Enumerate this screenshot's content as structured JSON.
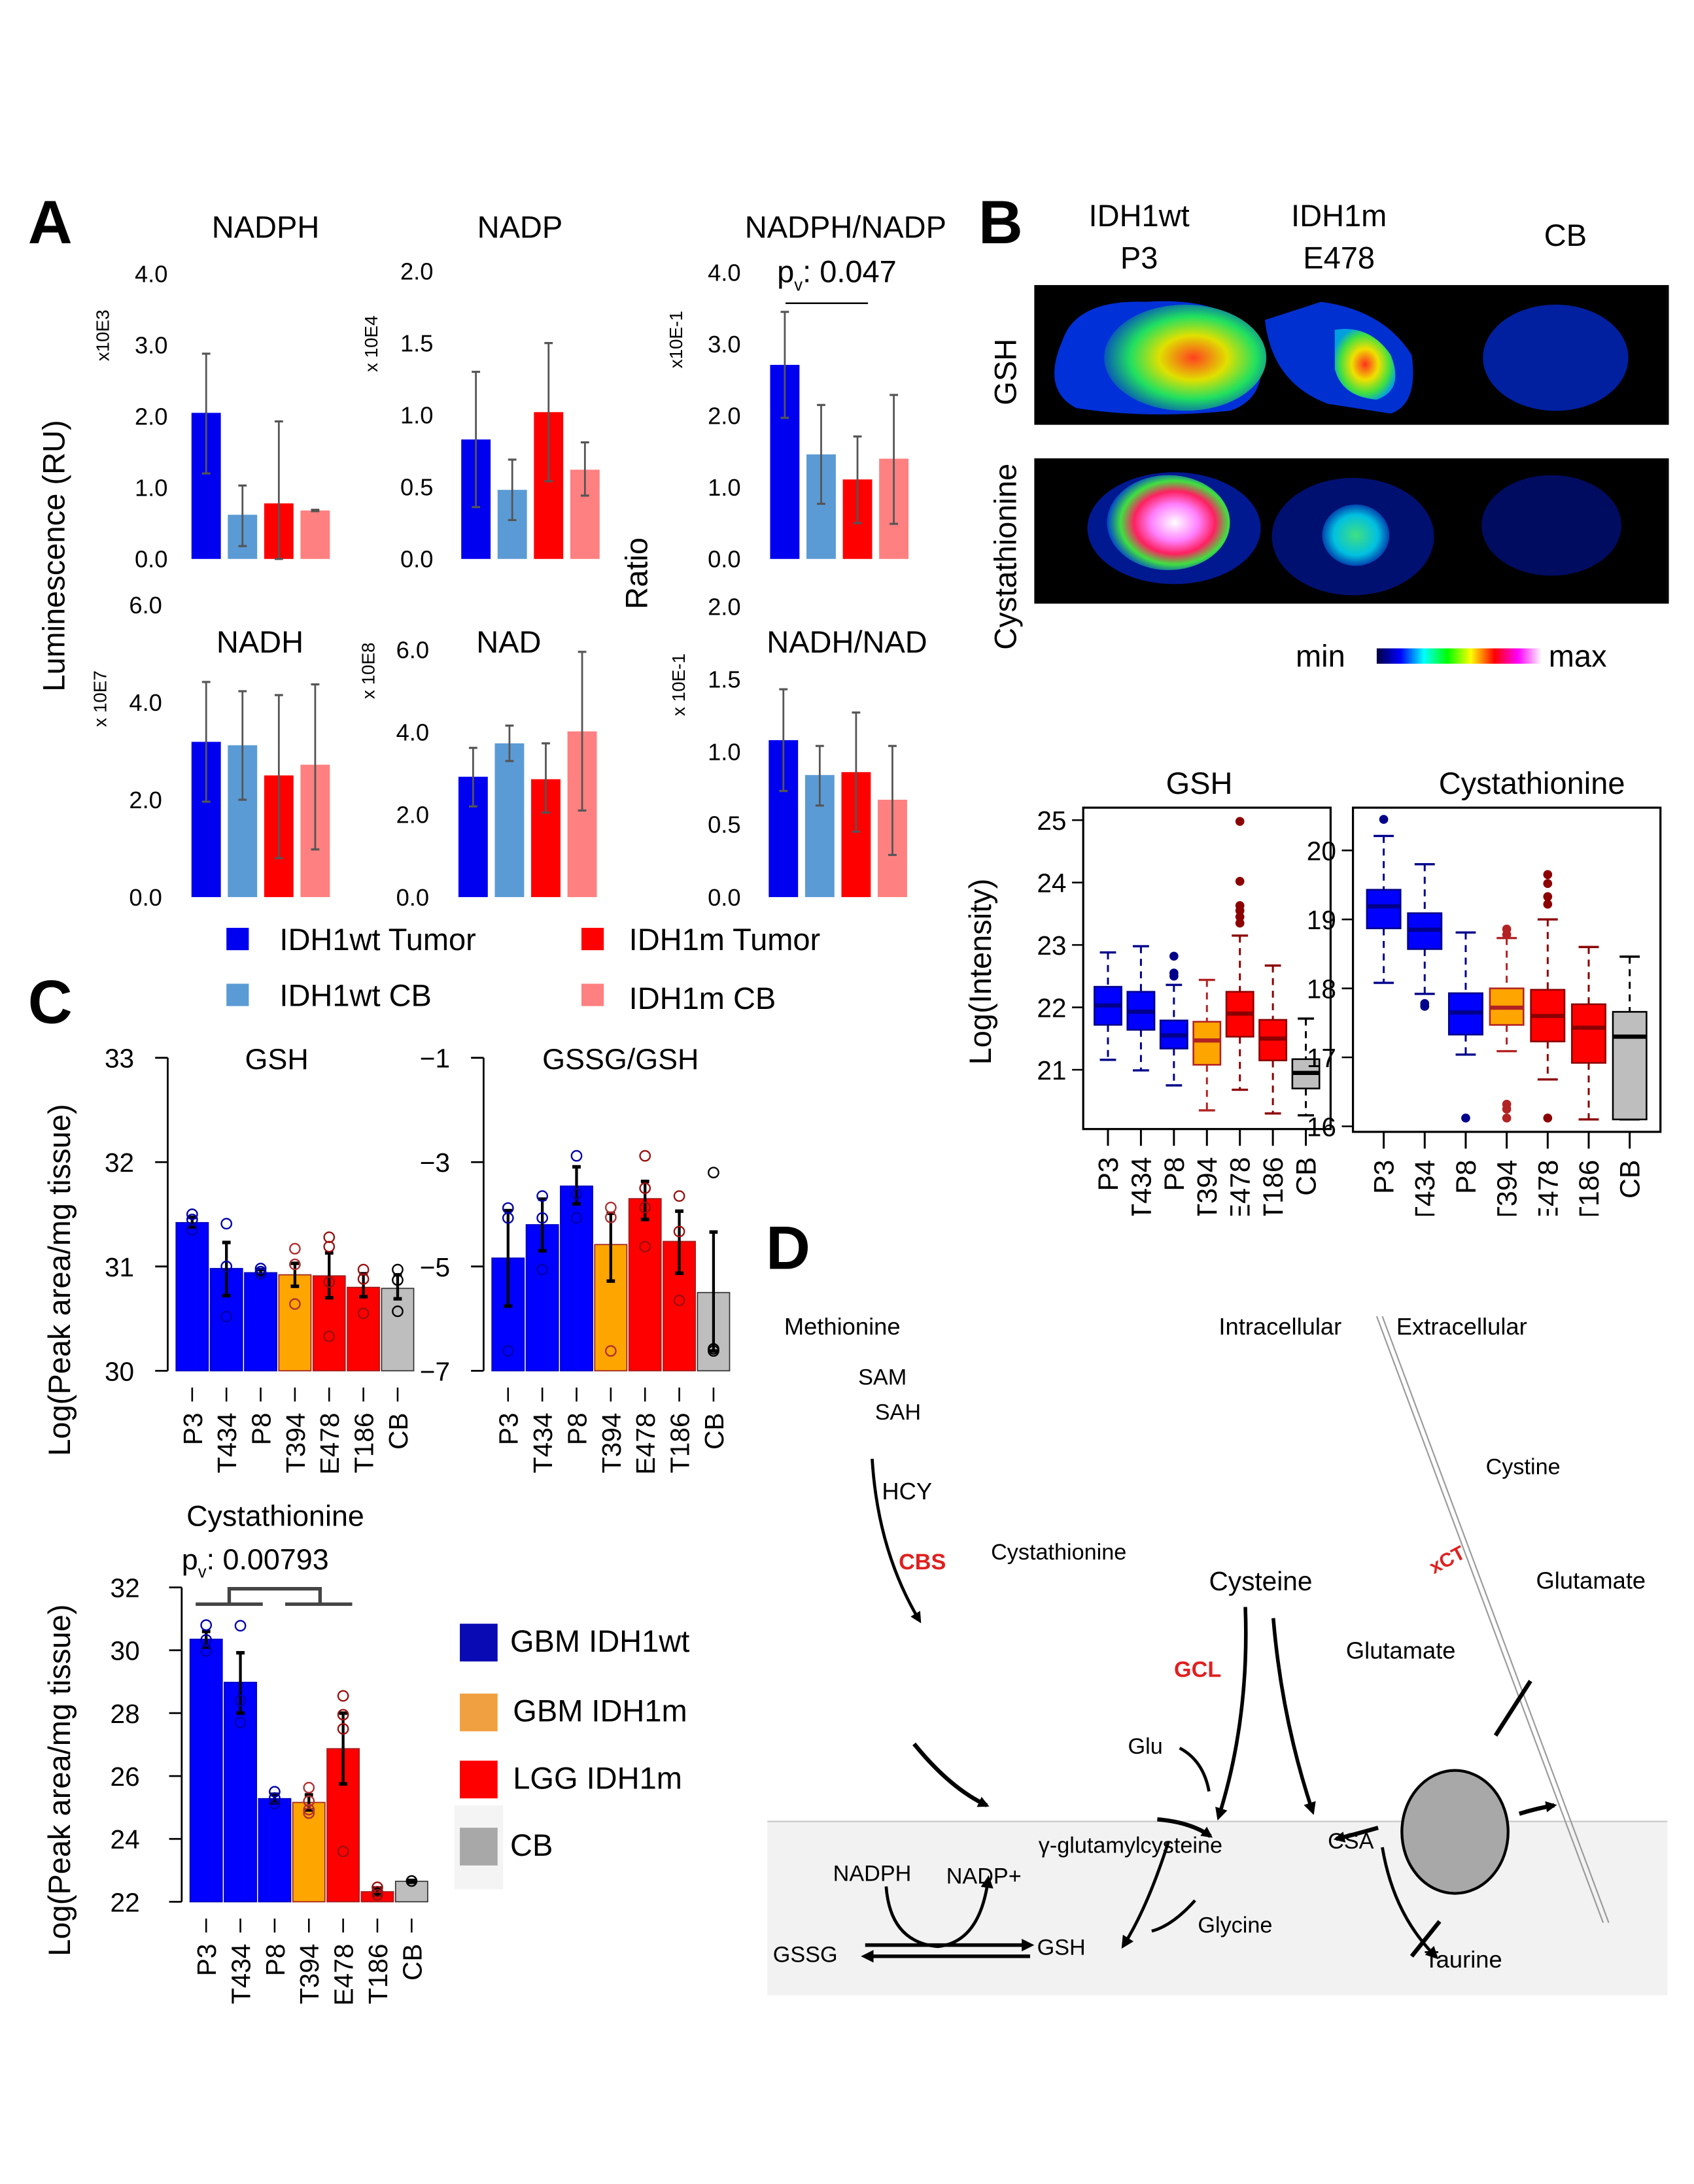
{
  "figure": {
    "panel_labels": [
      "A",
      "B",
      "C",
      "D"
    ]
  },
  "colors": {
    "idh1wt_tumor": "#0000f0",
    "idh1wt_cb": "#5b9bd5",
    "idh1m_tumor": "#ff0000",
    "idh1m_cb": "#ff8080",
    "gbm_idh1wt": "#0000e0",
    "gbm_idh1m": "#ffa500",
    "lgg_idh1m": "#ff0000",
    "cb": "#bebebe",
    "errorbar_gray": "#555555",
    "enzyme_red": "#e02020",
    "cytosol_bg": "#f2f2f2",
    "transporter_fill": "#a8a8a8"
  },
  "panelA": {
    "ylabel_left": "Luminescence (RU)",
    "ylabel_right": "Ratio",
    "legend": [
      {
        "label": "IDH1wt Tumor",
        "color_key": "idh1wt_tumor"
      },
      {
        "label": "IDH1m Tumor",
        "color_key": "idh1m_tumor"
      },
      {
        "label": "IDH1wt CB",
        "color_key": "idh1wt_cb"
      },
      {
        "label": "IDH1m CB",
        "color_key": "idh1m_cb"
      }
    ]
  },
  "panelB": {
    "columns": [
      {
        "line1": "IDH1wt",
        "line2": "P3"
      },
      {
        "line1": "IDH1m",
        "line2": "E478"
      },
      {
        "line1": "CB",
        "line2": ""
      }
    ],
    "rows": [
      "GSH",
      "Cystathionine"
    ],
    "colorbar": {
      "min_label": "min",
      "max_label": "max"
    },
    "boxplot_ylabel": "Log(Intensity)"
  },
  "panelC": {
    "ylabel": "Log(Peak area/mg tissue)",
    "legend": [
      {
        "label": "GBM IDH1wt",
        "color": "#0a0ab4"
      },
      {
        "label": "GBM IDH1m",
        "color": "#f0a040"
      },
      {
        "label": "LGG IDH1m",
        "color": "#ff0000"
      },
      {
        "label": "CB",
        "color": "#a8a8a8"
      }
    ]
  },
  "panelD": {
    "labels": {
      "methionine": "Methionine",
      "sam": "SAM",
      "sah": "SAH",
      "hcy": "HCY",
      "cbs": "CBS",
      "cystathionine": "Cystathionine",
      "cysteine": "Cysteine",
      "intracellular": "Intracellular",
      "extracellular": "Extracellular",
      "cystine": "Cystine",
      "xct": "xCT",
      "glutamate_out": "Glutamate",
      "glutamate_in": "Glutamate",
      "gcl": "GCL",
      "glu": "Glu",
      "gamma_glutamylcysteine": "γ-glutamylcysteine",
      "csa": "CSA",
      "nadph": "NADPH",
      "nadp_plus": "NADP+",
      "glycine": "Glycine",
      "gssg": "GSSG",
      "gsh": "GSH",
      "taurine": "Taurine"
    }
  },
  "chart_data": [
    {
      "id": "A-NADPH",
      "type": "bar",
      "title": "NADPH",
      "scale_label": "x10E3",
      "categories": [
        "IDH1wt Tumor",
        "IDH1wt CB",
        "IDH1m Tumor",
        "IDH1m CB"
      ],
      "values": [
        2.05,
        0.62,
        0.78,
        0.68
      ],
      "err_low": [
        1.2,
        0.18,
        0.0,
        0.67
      ],
      "err_high": [
        2.88,
        1.03,
        1.93,
        0.69
      ],
      "yticks": [
        "0.0",
        "1.0",
        "2.0",
        "3.0",
        "4.0"
      ],
      "ylim": [
        0,
        4
      ]
    },
    {
      "id": "A-NADP",
      "type": "bar",
      "title": "NADP",
      "scale_label": "x 10E4",
      "categories": [
        "IDH1wt Tumor",
        "IDH1wt CB",
        "IDH1m Tumor",
        "IDH1m CB"
      ],
      "values": [
        0.83,
        0.48,
        1.02,
        0.62
      ],
      "err_low": [
        0.36,
        0.27,
        0.54,
        0.44
      ],
      "err_high": [
        1.3,
        0.69,
        1.5,
        0.81
      ],
      "yticks": [
        "0.0",
        "0.5",
        "1.0",
        "1.5",
        "2.0"
      ],
      "ylim": [
        0,
        2
      ]
    },
    {
      "id": "A-NADPH/NADP",
      "type": "bar",
      "title": "NADPH/NADP",
      "scale_label": "x10E-1",
      "annotation": "pv: 0.047",
      "categories": [
        "IDH1wt Tumor",
        "IDH1wt CB",
        "IDH1m Tumor",
        "IDH1m CB"
      ],
      "values": [
        2.71,
        1.46,
        1.11,
        1.4
      ],
      "err_low": [
        1.97,
        0.77,
        0.5,
        0.49
      ],
      "err_high": [
        3.45,
        2.15,
        1.71,
        2.29
      ],
      "yticks": [
        "0.0",
        "1.0",
        "2.0",
        "3.0",
        "4.0"
      ],
      "ylim": [
        0,
        4
      ]
    },
    {
      "id": "A-NADH",
      "type": "bar",
      "title": "NADH",
      "scale_label": "x 10E7",
      "categories": [
        "IDH1wt Tumor",
        "IDH1wt CB",
        "IDH1m Tumor",
        "IDH1m CB"
      ],
      "values": [
        3.19,
        3.12,
        2.5,
        2.72
      ],
      "err_low": [
        1.96,
        2.0,
        0.8,
        0.98
      ],
      "err_high": [
        4.42,
        4.23,
        4.15,
        4.37
      ],
      "yticks": [
        "0.0",
        "2.0",
        "4.0",
        "6.0"
      ],
      "ylim": [
        0,
        6
      ]
    },
    {
      "id": "A-NAD",
      "type": "bar",
      "title": "NAD",
      "scale_label": "x 10E8",
      "categories": [
        "IDH1wt Tumor",
        "IDH1wt CB",
        "IDH1m Tumor",
        "IDH1m CB"
      ],
      "values": [
        2.92,
        3.73,
        2.86,
        4.02
      ],
      "err_low": [
        2.2,
        3.3,
        2.05,
        2.1
      ],
      "err_high": [
        3.62,
        4.16,
        3.73,
        5.95
      ],
      "yticks": [
        "0.0",
        "2.0",
        "4.0",
        "6.0"
      ],
      "ylim": [
        0,
        6
      ]
    },
    {
      "id": "A-NADH/NAD",
      "type": "bar",
      "title": "NADH/NAD",
      "scale_label": "x 10E-1",
      "categories": [
        "IDH1wt Tumor",
        "IDH1wt CB",
        "IDH1m Tumor",
        "IDH1m CB"
      ],
      "values": [
        1.08,
        0.84,
        0.86,
        0.67
      ],
      "err_low": [
        0.73,
        0.63,
        0.45,
        0.29
      ],
      "err_high": [
        1.43,
        1.04,
        1.27,
        1.04
      ],
      "yticks": [
        "0.0",
        "0.5",
        "1.0",
        "1.5",
        "2.0"
      ],
      "ylim": [
        0,
        2
      ]
    },
    {
      "id": "B-GSH",
      "type": "box",
      "title": "GSH",
      "ylabel": "Log(Intensity)",
      "categories": [
        "P3",
        "T434",
        "P8",
        "T394",
        "E478",
        "T186",
        "CB"
      ],
      "group": [
        "wt",
        "wt",
        "wt",
        "gbm_m",
        "lgg_m",
        "lgg_m",
        "cb"
      ],
      "q1": [
        21.72,
        21.64,
        21.34,
        21.08,
        21.53,
        21.15,
        20.7
      ],
      "median": [
        22.03,
        21.93,
        21.55,
        21.47,
        21.9,
        21.5,
        20.95
      ],
      "q3": [
        22.33,
        22.25,
        21.79,
        21.77,
        22.25,
        21.8,
        21.17
      ],
      "whisker_low": [
        21.16,
        20.99,
        20.75,
        20.35,
        20.68,
        20.3,
        20.27
      ],
      "whisker_high": [
        22.88,
        22.98,
        22.36,
        22.44,
        23.15,
        22.67,
        21.82
      ],
      "outliers": [
        [],
        [],
        [
          22.5,
          22.55,
          22.82
        ],
        [],
        [
          23.35,
          23.45,
          23.55,
          23.63,
          24.02,
          24.98
        ],
        [],
        []
      ],
      "yticks": [
        "21",
        "22",
        "23",
        "24",
        "25"
      ],
      "ylim": [
        20.05,
        25.2
      ]
    },
    {
      "id": "B-Cystathionine",
      "type": "box",
      "title": "Cystathionine",
      "categories": [
        "P3",
        "T434",
        "P8",
        "T394",
        "E478",
        "T186",
        "CB"
      ],
      "group": [
        "wt",
        "wt",
        "wt",
        "gbm_m",
        "lgg_m",
        "lgg_m",
        "cb"
      ],
      "q1": [
        18.87,
        18.57,
        17.33,
        17.47,
        17.23,
        16.92,
        16.1
      ],
      "median": [
        19.19,
        18.85,
        17.65,
        17.72,
        17.6,
        17.43,
        17.3
      ],
      "q3": [
        19.43,
        19.09,
        17.93,
        18.0,
        17.98,
        17.77,
        17.66
      ],
      "whisker_low": [
        18.08,
        17.92,
        17.04,
        17.09,
        16.68,
        16.1,
        16.1
      ],
      "whisker_high": [
        20.21,
        19.8,
        18.81,
        18.73,
        19.0,
        18.6,
        18.46
      ],
      "outliers": [
        [
          20.45
        ],
        [
          17.78,
          17.74
        ],
        [
          16.12
        ],
        [
          18.78,
          18.86,
          16.12,
          16.25,
          16.32
        ],
        [
          19.22,
          19.33,
          19.52,
          19.65,
          16.12
        ],
        [],
        []
      ],
      "yticks": [
        "16",
        "17",
        "18",
        "19",
        "20"
      ],
      "ylim": [
        15.92,
        20.62
      ]
    },
    {
      "id": "C-GSH",
      "type": "bar",
      "title": "GSH",
      "ylabel": "Log(Peak area/mg tissue)",
      "categories": [
        "P3",
        "T434",
        "P8",
        "T394",
        "E478",
        "T186",
        "CB"
      ],
      "group": [
        "wt",
        "wt",
        "wt",
        "gbm_m",
        "lgg_m",
        "lgg_m",
        "cb"
      ],
      "values": [
        31.42,
        30.98,
        30.94,
        30.92,
        30.91,
        30.8,
        30.79
      ],
      "err_low": [
        31.38,
        30.72,
        30.92,
        30.81,
        30.7,
        30.71,
        30.69
      ],
      "err_high": [
        31.47,
        31.23,
        30.97,
        31.03,
        31.13,
        30.93,
        30.92
      ],
      "points": [
        [
          31.5,
          31.45,
          31.35
        ],
        [
          31.41,
          31.0,
          30.52
        ],
        [
          30.98,
          30.95,
          30.93
        ],
        [
          31.17,
          31.02,
          30.64
        ],
        [
          31.28,
          31.19,
          30.85,
          30.33
        ],
        [
          30.97,
          30.88,
          30.55
        ],
        [
          30.97,
          30.87,
          30.57
        ]
      ],
      "yticks": [
        "30",
        "31",
        "32",
        "33"
      ],
      "ylim": [
        30,
        33
      ]
    },
    {
      "id": "C-GSSG/GSH",
      "type": "bar",
      "title": "GSSG/GSH",
      "categories": [
        "P3",
        "T434",
        "P8",
        "T394",
        "E478",
        "T186",
        "CB"
      ],
      "group": [
        "wt",
        "wt",
        "wt",
        "gbm_m",
        "lgg_m",
        "lgg_m",
        "cb"
      ],
      "values": [
        -4.84,
        -4.2,
        -3.46,
        -4.58,
        -3.7,
        -4.52,
        -5.5
      ],
      "err_low": [
        -5.76,
        -4.7,
        -3.8,
        -5.28,
        -4.1,
        -5.13,
        -6.62
      ],
      "err_high": [
        -3.93,
        -3.71,
        -3.09,
        -3.98,
        -3.37,
        -3.94,
        -4.34
      ],
      "points": [
        [
          -3.88,
          -4.07,
          -6.62
        ],
        [
          -3.65,
          -4.07,
          -5.06
        ],
        [
          -2.88,
          -3.61,
          -4.07
        ],
        [
          -3.87,
          -4.06,
          -6.62
        ],
        [
          -2.88,
          -3.5,
          -3.87,
          -4.62
        ],
        [
          -3.65,
          -4.33,
          -5.65
        ],
        [
          -3.2,
          -6.58,
          -6.62
        ]
      ],
      "yticks": [
        "-7",
        "-5",
        "-3",
        "-1"
      ],
      "ylim": [
        -7,
        -1
      ]
    },
    {
      "id": "C-Cystathionine",
      "type": "bar",
      "title": "Cystathionine",
      "annotation": "pv: 0.00793",
      "categories": [
        "P3",
        "T434",
        "P8",
        "T394",
        "E478",
        "T186",
        "CB"
      ],
      "group": [
        "wt",
        "wt",
        "wt",
        "gbm_m",
        "lgg_m",
        "lgg_m",
        "cb"
      ],
      "values": [
        30.35,
        28.98,
        25.28,
        25.16,
        26.87,
        22.32,
        22.65
      ],
      "err_low": [
        30.1,
        28.0,
        25.15,
        24.92,
        25.75,
        22.22,
        22.62
      ],
      "err_high": [
        30.6,
        29.92,
        25.42,
        25.4,
        28.0,
        22.44,
        22.68
      ],
      "points": [
        [
          30.8,
          30.33,
          29.98
        ],
        [
          30.78,
          28.4,
          27.7
        ],
        [
          25.5,
          25.3,
          25.12
        ],
        [
          25.63,
          25.2,
          24.93,
          24.82
        ],
        [
          28.55,
          27.95,
          27.5,
          23.6
        ],
        [
          22.46,
          22.32,
          22.22
        ],
        [
          22.66
        ]
      ],
      "yticks": [
        "22",
        "24",
        "26",
        "28",
        "30",
        "32"
      ],
      "ylim": [
        22,
        32
      ]
    }
  ]
}
